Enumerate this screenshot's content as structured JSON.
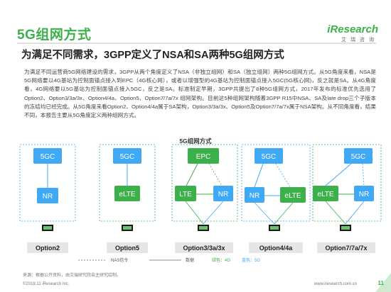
{
  "header": {
    "title": "5G组网方式",
    "subtitle": "为满足不同需求，3GPP定义了NSA和SA两种5G组网方式"
  },
  "logo": {
    "brand": "iResearch",
    "cn": "艾瑞咨询"
  },
  "body": {
    "paragraph": "为满足不同运营商5G网络建设的需求，3GPP从两个角度定义了NSA（非独立组网）和SA（独立组网）两种5G组网方式。从5G角度来看，NSA是5G网络要以4G基站为控制面锚点接入到EPC（4G核心网），或者以增强型的4G基站为控制面锚点接入5GC(5G核心网)，反之就是SA。从4G角度看，4G网络要以5G基站为控制面锚点接入5GC，反之是SA。标准制定早期，3GPP共提出了8种5G组网方式，2017年发布的标准优先选用了Option2、Option3/3a/3x、Option4/4a、Option5、Option7/7a/7x 组网架构。目前这5种组网架构随着3GPP R15中NSA、SA及late drop三个子版本的冻结均已经完成。从5G角度来看Option2、Option4/4a属于SA架构，Option3/3a/3x、Option5及Option7/7a/7x属于NSA架构。从不同角度看，结果不同，本报告主要从5G角度定义两种组网方式。"
  },
  "diagram": {
    "title": "5G组网方式",
    "options": [
      {
        "label": "Option2",
        "core": "5GC",
        "ran": [
          "NR"
        ]
      },
      {
        "label": "Option5",
        "core": "5GC",
        "ran": [
          "eLTE"
        ]
      },
      {
        "label": "Option3/3a/3x",
        "core": "EPC",
        "ran": [
          "LTE",
          "NR"
        ]
      },
      {
        "label": "Option4/4a",
        "core": "5GC",
        "ran": [
          "NR",
          "eLTE"
        ]
      },
      {
        "label": "Option7/7a/7x",
        "core": "5GC",
        "ran": [
          "eLTE",
          "NR"
        ]
      }
    ],
    "legend": {
      "nas": "NAS信令",
      "data": "数据",
      "green": "绿色：4G",
      "blue": "蓝色：5G"
    },
    "colors": {
      "blue": "#3fa9f5",
      "green": "#3cb04a"
    }
  },
  "footer": {
    "source": "来源：根据公开资料，由艾瑞研究院自主研究绘制。",
    "copyright": "©2019.11 iResearch Inc.",
    "url": "www.iresearch.com.cn",
    "page": "11"
  }
}
